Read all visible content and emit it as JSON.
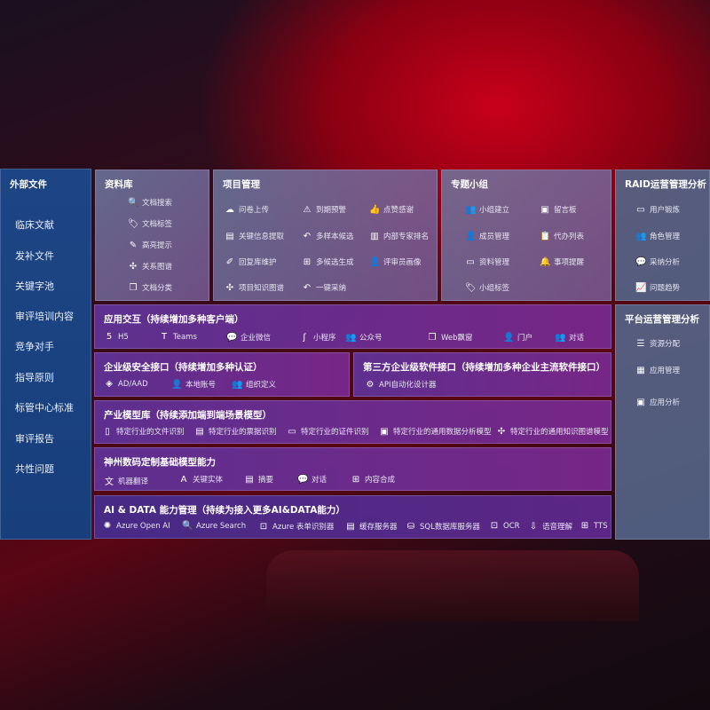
{
  "sidebar": {
    "title": "外部文件",
    "items": [
      "临床文献",
      "发补文件",
      "关键字池",
      "审评培训内容",
      "竞争对手",
      "指导原则",
      "标管中心标准",
      "审评报告",
      "共性问题"
    ]
  },
  "library": {
    "title": "资料库",
    "items": [
      {
        "icon": "doc-search-icon",
        "g": "🔍",
        "label": "文档搜索"
      },
      {
        "icon": "tag-icon",
        "g": "🏷",
        "label": "文档标签"
      },
      {
        "icon": "pen-icon",
        "g": "✎",
        "label": "高亮提示"
      },
      {
        "icon": "graph-icon",
        "g": "✣",
        "label": "关系图谱"
      },
      {
        "icon": "doc-category-icon",
        "g": "❐",
        "label": "文档分类"
      }
    ]
  },
  "project": {
    "title": "项目管理",
    "items": [
      {
        "icon": "upload-cloud-icon",
        "g": "☁",
        "label": "问卷上传"
      },
      {
        "icon": "alarm-icon",
        "g": "⚠",
        "label": "到期预警"
      },
      {
        "icon": "thumbs-up-icon",
        "g": "👍",
        "label": "点赞感谢"
      },
      {
        "icon": "extract-icon",
        "g": "▤",
        "label": "关键信息提取"
      },
      {
        "icon": "reply-icon",
        "g": "↶",
        "label": "多样本候选"
      },
      {
        "icon": "ranking-icon",
        "g": "▥",
        "label": "内部专家排名"
      },
      {
        "icon": "edit-icon",
        "g": "✐",
        "label": "回复库维护"
      },
      {
        "icon": "puzzle-icon",
        "g": "⊞",
        "label": "多候选生成"
      },
      {
        "icon": "user-icon",
        "g": "👤",
        "label": "评审员画像"
      },
      {
        "icon": "network-icon",
        "g": "✣",
        "label": "项目知识图谱"
      },
      {
        "icon": "reply-icon",
        "g": "↶",
        "label": "一键采纳"
      }
    ]
  },
  "group": {
    "title": "专题小组",
    "items": [
      {
        "icon": "users-icon",
        "g": "👥",
        "label": "小组建立"
      },
      {
        "icon": "bbs-icon",
        "g": "▣",
        "label": "留言板"
      },
      {
        "icon": "user-add-icon",
        "g": "👤",
        "label": "成员管理"
      },
      {
        "icon": "clipboard-icon",
        "g": "📋",
        "label": "代办列表"
      },
      {
        "icon": "folder-icon",
        "g": "▭",
        "label": "资料管理"
      },
      {
        "icon": "bell-icon",
        "g": "🔔",
        "label": "事项提醒"
      },
      {
        "icon": "tag-icon",
        "g": "🏷",
        "label": "小组标签"
      }
    ]
  },
  "raid": {
    "title": "RAID运营管理分析",
    "items": [
      {
        "icon": "id-card-icon",
        "g": "▭",
        "label": "用户锻炼"
      },
      {
        "icon": "users-icon",
        "g": "👥",
        "label": "角色管理"
      },
      {
        "icon": "qa-icon",
        "g": "💬",
        "label": "采纳分析"
      },
      {
        "icon": "trend-icon",
        "g": "📈",
        "label": "问题趋势"
      }
    ]
  },
  "platform": {
    "title": "平台运营管理分析",
    "items": [
      {
        "icon": "checklist-icon",
        "g": "☰",
        "label": "资源分配"
      },
      {
        "icon": "apps-icon",
        "g": "▦",
        "label": "应用管理"
      },
      {
        "icon": "analytics-icon",
        "g": "▣",
        "label": "应用分析"
      }
    ]
  },
  "app": {
    "title": "应用交互（持续增加多种客户端）",
    "items": [
      {
        "icon": "html5-icon",
        "g": "5",
        "label": "H5"
      },
      {
        "icon": "teams-icon",
        "g": "T",
        "label": "Teams"
      },
      {
        "icon": "wecom-icon",
        "g": "💬",
        "label": "企业微信"
      },
      {
        "icon": "miniprogram-icon",
        "g": "ʃ",
        "label": "小程序"
      },
      {
        "icon": "users-icon",
        "g": "👥",
        "label": "公众号"
      },
      {
        "icon": "window-icon",
        "g": "❐",
        "label": "Web飘窗"
      },
      {
        "icon": "portal-icon",
        "g": "👤",
        "label": "门户"
      },
      {
        "icon": "chat-users-icon",
        "g": "👥",
        "label": "对话"
      }
    ]
  },
  "security": {
    "title": "企业级安全接口（持续增加多种认证）",
    "items": [
      {
        "icon": "aad-icon",
        "g": "◈",
        "label": "AD/AAD"
      },
      {
        "icon": "local-account-icon",
        "g": "👤",
        "label": "本地账号"
      },
      {
        "icon": "org-icon",
        "g": "👥",
        "label": "组织定义"
      }
    ]
  },
  "thirdparty": {
    "title": "第三方企业级软件接口（持续增加多种企业主流软件接口）",
    "items": [
      {
        "icon": "api-gear-icon",
        "g": "⚙",
        "label": "API自动化设计器"
      }
    ]
  },
  "industry": {
    "title": "产业模型库（持续添加端到端场景模型）",
    "items": [
      {
        "icon": "file-icon",
        "g": "▯",
        "label": "特定行业的文件识别"
      },
      {
        "icon": "receipt-icon",
        "g": "▤",
        "label": "特定行业的票据识别"
      },
      {
        "icon": "id-card-icon",
        "g": "▭",
        "label": "特定行业的证件识别"
      },
      {
        "icon": "chart-icon",
        "g": "▣",
        "label": "特定行业的通用数据分析模型"
      },
      {
        "icon": "network-icon",
        "g": "✣",
        "label": "特定行业的通用知识图谱模型"
      }
    ]
  },
  "base": {
    "title": "神州数码定制基础模型能力",
    "items": [
      {
        "icon": "translate-icon",
        "g": "文",
        "label": "机器翻译"
      },
      {
        "icon": "entity-icon",
        "g": "A",
        "label": "关键实体"
      },
      {
        "icon": "summary-icon",
        "g": "▤",
        "label": "摘要"
      },
      {
        "icon": "chat-icon",
        "g": "💬",
        "label": "对话"
      },
      {
        "icon": "compose-icon",
        "g": "⊞",
        "label": "内容合成"
      }
    ]
  },
  "ai": {
    "title": "AI & DATA 能力管理（持续为接入更多AI&DATA能力）",
    "items": [
      {
        "icon": "openai-icon",
        "g": "✺",
        "label": "Azure Open AI"
      },
      {
        "icon": "search-doc-icon",
        "g": "🔍",
        "label": "Azure Search"
      },
      {
        "icon": "form-icon",
        "g": "⊡",
        "label": "Azure 表单识别器"
      },
      {
        "icon": "cache-icon",
        "g": "▤",
        "label": "缓存服务器"
      },
      {
        "icon": "database-icon",
        "g": "⛁",
        "label": "SQL数据库服务器"
      },
      {
        "icon": "ocr-icon",
        "g": "⊡",
        "label": "OCR"
      },
      {
        "icon": "speech-icon",
        "g": "⇩",
        "label": "语音理解"
      },
      {
        "icon": "tts-icon",
        "g": "⊞",
        "label": "TTS"
      }
    ]
  }
}
